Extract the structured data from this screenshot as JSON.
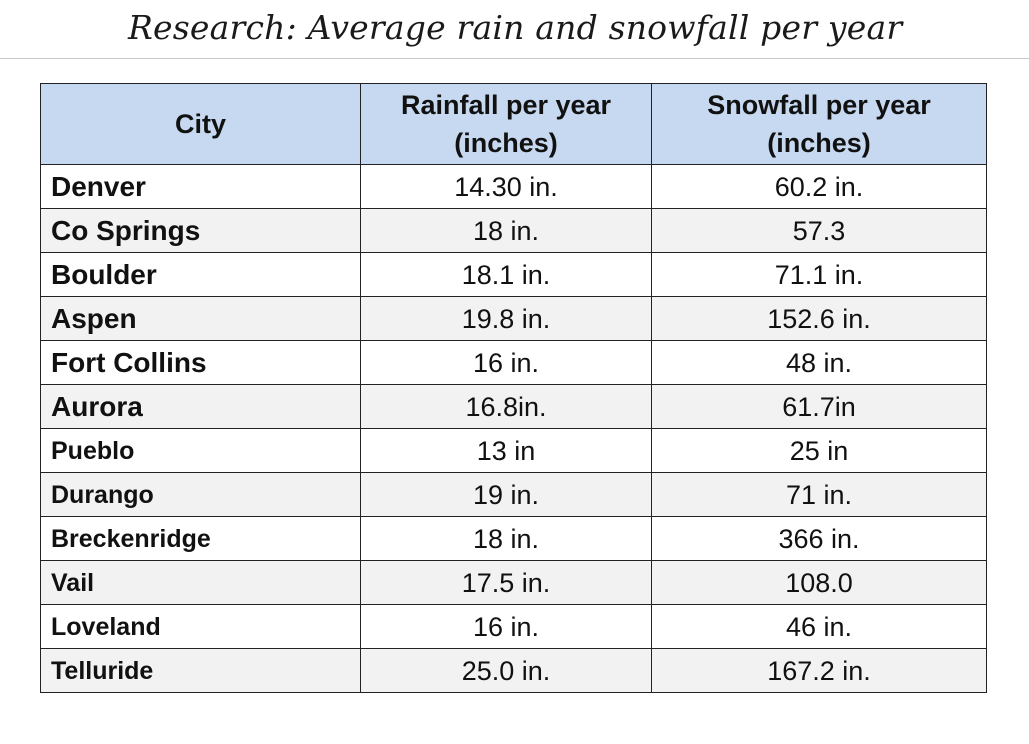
{
  "title": "Research: Average rain and snowfall per year",
  "table": {
    "headers": [
      "City",
      "Rainfall per year (inches)",
      "Snowfall per year (inches)"
    ],
    "header_bg": "#c7d9f0",
    "rows": [
      {
        "city": "Denver",
        "rain": "14.30 in.",
        "snow": "60.2 in."
      },
      {
        "city": "Co Springs",
        "rain": "18 in.",
        "snow": "57.3"
      },
      {
        "city": "Boulder",
        "rain": "18.1 in.",
        "snow": "71.1 in."
      },
      {
        "city": "Aspen",
        "rain": "19.8 in.",
        "snow": "152.6 in."
      },
      {
        "city": "Fort Collins",
        "rain": "16 in.",
        "snow": "48 in."
      },
      {
        "city": "Aurora",
        "rain": "16.8in.",
        "snow": "61.7in"
      },
      {
        "city": "Pueblo",
        "rain": "13 in",
        "snow": "25 in"
      },
      {
        "city": "Durango",
        "rain": "19 in.",
        "snow": "71 in."
      },
      {
        "city": "Breckenridge",
        "rain": "18 in.",
        "snow": "366 in."
      },
      {
        "city": "Vail",
        "rain": "17.5 in.",
        "snow": "108.0"
      },
      {
        "city": "Loveland",
        "rain": "16 in.",
        "snow": "46 in."
      },
      {
        "city": "Telluride",
        "rain": "25.0 in.",
        "snow": "167.2 in."
      }
    ]
  }
}
